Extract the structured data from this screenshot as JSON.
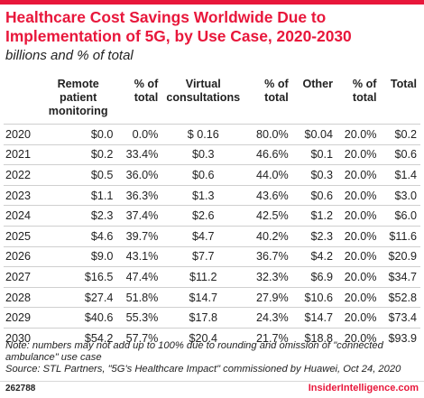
{
  "chart_data": {
    "type": "table",
    "title": "Healthcare Cost Savings Worldwide Due to Implementation of 5G, by Use Case, 2020-2030",
    "subtitle": "billions and % of total",
    "columns": [
      "",
      "Remote patient monitoring",
      "% of total",
      "Virtual consultations",
      "% of total",
      "Other",
      "% of total",
      "Total"
    ],
    "rows": [
      [
        "2020",
        "$0.0",
        "0.0%",
        "$ 0.16",
        "80.0%",
        "$0.04",
        "20.0%",
        "$0.2"
      ],
      [
        "2021",
        "$0.2",
        "33.4%",
        "$0.3",
        "46.6%",
        "$0.1",
        "20.0%",
        "$0.6"
      ],
      [
        "2022",
        "$0.5",
        "36.0%",
        "$0.6",
        "44.0%",
        "$0.3",
        "20.0%",
        "$1.4"
      ],
      [
        "2023",
        "$1.1",
        "36.3%",
        "$1.3",
        "43.6%",
        "$0.6",
        "20.0%",
        "$3.0"
      ],
      [
        "2024",
        "$2.3",
        "37.4%",
        "$2.6",
        "42.5%",
        "$1.2",
        "20.0%",
        "$6.0"
      ],
      [
        "2025",
        "$4.6",
        "39.7%",
        "$4.7",
        "40.2%",
        "$2.3",
        "20.0%",
        "$11.6"
      ],
      [
        "2026",
        "$9.0",
        "43.1%",
        "$7.7",
        "36.7%",
        "$4.2",
        "20.0%",
        "$20.9"
      ],
      [
        "2027",
        "$16.5",
        "47.4%",
        "$11.2",
        "32.3%",
        "$6.9",
        "20.0%",
        "$34.7"
      ],
      [
        "2028",
        "$27.4",
        "51.8%",
        "$14.7",
        "27.9%",
        "$10.6",
        "20.0%",
        "$52.8"
      ],
      [
        "2029",
        "$40.6",
        "55.3%",
        "$17.8",
        "24.3%",
        "$14.7",
        "20.0%",
        "$73.4"
      ],
      [
        "2030",
        "$54.2",
        "57.7%",
        "$20.4",
        "21.7%",
        "$18.8",
        "20.0%",
        "$93.9"
      ]
    ]
  },
  "note": "Note: numbers may not add up to 100% due to rounding and omission of \"connected ambulance\" use case",
  "source": "Source: STL Partners, \"5G's Healthcare Impact\" commissioned by Huawei, Oct 24, 2020",
  "footer": {
    "chart_id": "262788",
    "brand": "InsiderIntelligence.com"
  },
  "colors": {
    "accent": "#e8173b",
    "text": "#222222",
    "rule": "#cfcfcf"
  }
}
